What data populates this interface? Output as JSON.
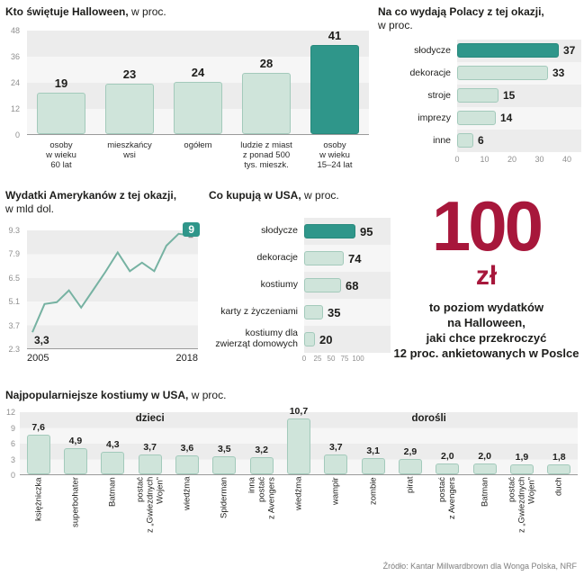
{
  "colors": {
    "mint": "#cfe4da",
    "mint_border": "#a3cabb",
    "teal": "#2f968a",
    "red": "#a7173b",
    "stripe_dark": "#ececec",
    "stripe_light": "#f6f6f6",
    "text": "#1d1d1b",
    "tick_gray": "#8f8f8f"
  },
  "chart_data": [
    {
      "id": "who-celebrates",
      "type": "bar",
      "title_bold": "Kto świętuje Halloween,",
      "title_rest": " w proc.",
      "categories": [
        "osoby\nw wieku\n60 lat",
        "mieszkańcy\nwsi",
        "ogółem",
        "ludzie z miast\nz ponad 500\ntys. mieszk.",
        "osoby\nw wieku\n15–24 lat"
      ],
      "values": [
        19,
        23,
        24,
        28,
        41
      ],
      "highlight_index": 4,
      "ylim": [
        0,
        48
      ],
      "y_ticks": [
        48,
        36,
        24,
        12,
        0
      ]
    },
    {
      "id": "poles-spend-on",
      "type": "bar-horizontal",
      "title_bold": "Na co wydają Polacy z tej okazji,",
      "title_rest": "w proc.",
      "categories": [
        "słodycze",
        "dekoracje",
        "stroje",
        "imprezy",
        "inne"
      ],
      "values": [
        37,
        33,
        15,
        14,
        6
      ],
      "highlight_index": 0,
      "xlim": [
        0,
        40
      ],
      "x_ticks": [
        0,
        10,
        20,
        30,
        40
      ]
    },
    {
      "id": "us-spending",
      "type": "line",
      "title_bold": "Wydatki Amerykanów z tej okazji,",
      "title_rest": "w mld dol.",
      "x": [
        2005,
        2006,
        2007,
        2008,
        2009,
        2010,
        2011,
        2012,
        2013,
        2014,
        2015,
        2016,
        2017,
        2018
      ],
      "values": [
        3.3,
        4.96,
        5.07,
        5.77,
        4.75,
        5.8,
        6.86,
        8.0,
        6.9,
        7.4,
        6.9,
        8.4,
        9.1,
        9.0
      ],
      "ylim": [
        2.3,
        9.3
      ],
      "y_ticks": [
        9.3,
        7.9,
        6.5,
        5.1,
        3.7,
        2.3
      ],
      "x_labels": [
        "2005",
        "2018"
      ],
      "start_label": "3,3",
      "end_label": "9"
    },
    {
      "id": "us-buy",
      "type": "bar-horizontal",
      "title_bold": "Co kupują w USA,",
      "title_rest": " w proc.",
      "categories": [
        "słodycze",
        "dekoracje",
        "kostiumy",
        "karty z życzeniami",
        "kostiumy dla\nzwierząt domowych"
      ],
      "values": [
        95,
        74,
        68,
        35,
        20
      ],
      "highlight_index": 0,
      "xlim": [
        0,
        100
      ],
      "x_ticks": [
        0,
        25,
        50,
        75,
        100
      ]
    },
    {
      "id": "costumes",
      "type": "bar",
      "title_bold": "Najpopularniejsze kostiumy w USA,",
      "title_rest": " w proc.",
      "groups": [
        {
          "label": "dzieci",
          "from": 0,
          "to": 6
        },
        {
          "label": "dorośli",
          "from": 7,
          "to": 14
        }
      ],
      "categories": [
        "księżniczka",
        "superbohater",
        "Batman",
        "postać\nz „Gwiezdnych\nWojen”",
        "wiedźma",
        "Spiderman",
        "inna\npostać\nz Avengers",
        "wiedźma",
        "wampir",
        "zombie",
        "pirat",
        "postać\nz Avengers",
        "Batman",
        "postać\nz „Gwiezdnych\nWojen”",
        "duch"
      ],
      "values": [
        7.6,
        4.9,
        4.3,
        3.7,
        3.6,
        3.5,
        3.2,
        10.7,
        3.7,
        3.1,
        2.9,
        2.0,
        2.0,
        1.9,
        1.8
      ],
      "value_labels": [
        "7,6",
        "4,9",
        "4,3",
        "3,7",
        "3,6",
        "3,5",
        "3,2",
        "10,7",
        "3,7",
        "3,1",
        "2,9",
        "2,0",
        "2,0",
        "1,9",
        "1,8"
      ],
      "ylim": [
        0,
        12
      ],
      "y_ticks": [
        12,
        9,
        6,
        3,
        0
      ]
    }
  ],
  "callout": {
    "big_number": "100",
    "unit": "zł",
    "text": "to poziom wydatków\nna Halloween,\njaki chce przekroczyć\n12 proc. ankietowanych w Poslce"
  },
  "footer": {
    "source": "Źródło: Kantar Millwardbrown dla Wonga Polska, NRF"
  }
}
